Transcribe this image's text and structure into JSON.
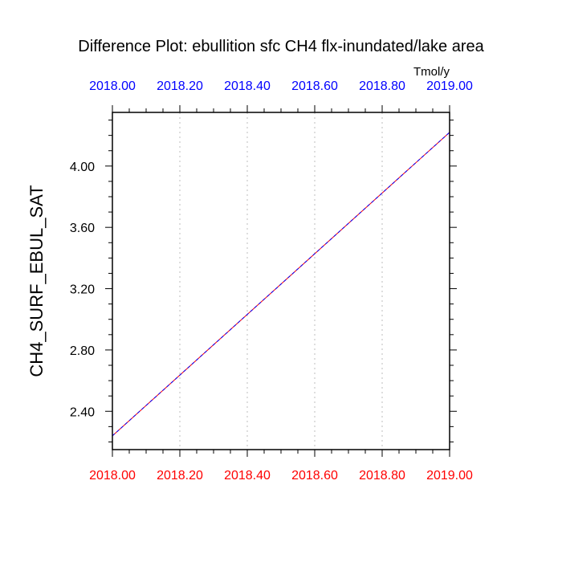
{
  "chart_data": {
    "type": "line",
    "title": "Difference Plot: ebullition sfc CH4 flx-inundated/lake area",
    "units": "Tmol/y",
    "ylabel": "CH4_SURF_EBUL_SAT",
    "xlabel": "",
    "xlim": [
      2018.0,
      2019.0
    ],
    "ylim": [
      2.15,
      4.35
    ],
    "x_ticks": [
      2018.0,
      2018.2,
      2018.4,
      2018.6,
      2018.8,
      2019.0
    ],
    "x_tick_labels": [
      "2018.00",
      "2018.20",
      "2018.40",
      "2018.60",
      "2018.80",
      "2019.00"
    ],
    "x_minor_step": 0.05,
    "y_ticks": [
      2.4,
      2.8,
      3.2,
      3.6,
      4.0
    ],
    "y_tick_labels": [
      "2.40",
      "2.80",
      "3.20",
      "3.60",
      "4.00"
    ],
    "y_minor_step": 0.1,
    "grid": {
      "vertical": true,
      "horizontal": false
    },
    "top_axis_color": "#0000ff",
    "bottom_axis_color": "#ff0000",
    "series": [
      {
        "x": [
          2018.0,
          2019.0
        ],
        "values": [
          2.24,
          4.22
        ],
        "color": "#ff0000",
        "dash": "solid"
      },
      {
        "x": [
          2018.0,
          2019.0
        ],
        "values": [
          2.24,
          4.22
        ],
        "color": "#0000ff",
        "dash": "dashed"
      }
    ]
  }
}
